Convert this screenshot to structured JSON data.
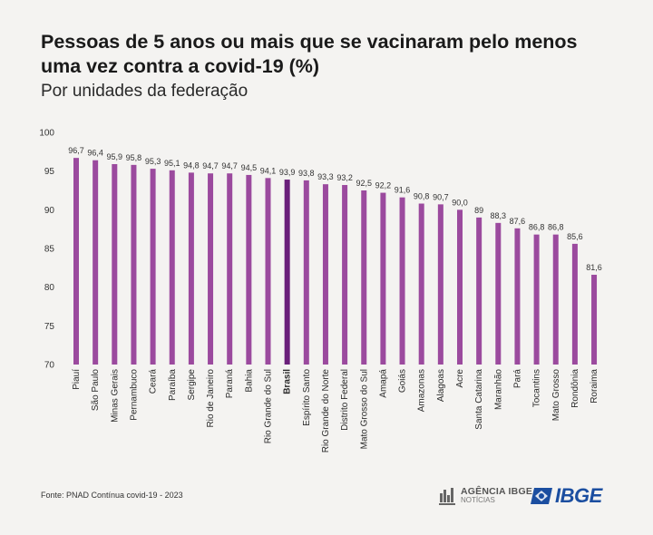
{
  "header": {
    "title": "Pessoas de 5 anos ou mais que se vacinaram pelo menos uma vez contra a covid-19 (%)",
    "subtitle": "Por unidades da federação"
  },
  "footer": {
    "source": "Fonte: PNAD Contínua covid-19 - 2023",
    "agencia_line1": "AGÊNCIA IBGE",
    "agencia_line2": "NOTÍCIAS",
    "brand": "IBGE"
  },
  "colors": {
    "bar": "#9b4a9e",
    "highlight_bar": "#6a1f7a",
    "brand_blue": "#1b4ea0"
  },
  "chart_data": {
    "type": "bar",
    "title": "Pessoas de 5 anos ou mais que se vacinaram pelo menos uma vez contra a covid-19 (%)",
    "subtitle": "Por unidades da federação",
    "ylim": [
      70,
      100
    ],
    "yticks": [
      70,
      75,
      80,
      85,
      90,
      95,
      100
    ],
    "grid": false,
    "highlight": "Brasil",
    "categories": [
      "Piauí",
      "São Paulo",
      "Minas Gerais",
      "Pernambuco",
      "Ceará",
      "Paraíba",
      "Sergipe",
      "Rio de Janeiro",
      "Paraná",
      "Bahia",
      "Rio Grande do Sul",
      "Brasil",
      "Espírito Santo",
      "Rio Grande do Norte",
      "Distrito Federal",
      "Mato Grosso do Sul",
      "Amapá",
      "Goiás",
      "Amazonas",
      "Alagoas",
      "Acre",
      "Santa Catarina",
      "Maranhão",
      "Pará",
      "Tocantins",
      "Mato Grosso",
      "Rondônia",
      "Roraima"
    ],
    "values": [
      96.7,
      96.4,
      95.9,
      95.8,
      95.3,
      95.1,
      94.8,
      94.7,
      94.7,
      94.5,
      94.1,
      93.9,
      93.8,
      93.3,
      93.2,
      92.5,
      92.2,
      91.6,
      90.8,
      90.7,
      90.0,
      89,
      88.3,
      87.6,
      86.8,
      86.8,
      85.6,
      81.6
    ],
    "value_labels": [
      "96,7",
      "96,4",
      "95,9",
      "95,8",
      "95,3",
      "95,1",
      "94,8",
      "94,7",
      "94,7",
      "94,5",
      "94,1",
      "93,9",
      "93,8",
      "93,3",
      "93,2",
      "92,5",
      "92,2",
      "91,6",
      "90,8",
      "90,7",
      "90,0",
      "89",
      "88,3",
      "87,6",
      "86,8",
      "86,8",
      "85,6",
      "81,6"
    ]
  }
}
